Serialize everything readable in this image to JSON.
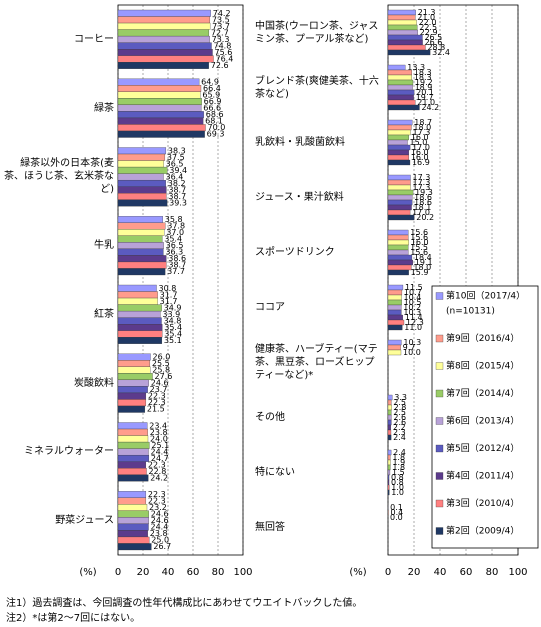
{
  "chart_data": [
    {
      "type": "bar",
      "orientation": "horizontal",
      "x_label": "(%)",
      "categories": [
        "コーヒー",
        "緑茶",
        "緑茶以外の日本茶(麦茶、ほうじ茶、玄米茶など)",
        "牛乳",
        "紅茶",
        "炭酸飲料",
        "ミネラルウォーター",
        "野菜ジュース"
      ],
      "xlim": [
        0,
        100
      ],
      "xticks": [
        0,
        20,
        40,
        60,
        80,
        100
      ],
      "grid": true,
      "series": [
        {
          "color": "#9999ff",
          "values": [
            74.2,
            64.9,
            38.3,
            35.8,
            30.8,
            26.0,
            23.4,
            22.3
          ],
          "value_labels": [
            "74.2",
            "64.9",
            "38.3",
            "35.8",
            "30.8",
            "26.0",
            "23.4",
            "22.3"
          ]
        },
        {
          "color": "#ff9c8c",
          "values": [
            73.5,
            66.4,
            37.5,
            37.8,
            31.7,
            25.5,
            23.8,
            22.3
          ],
          "value_labels": [
            "73.5",
            "66.4",
            "37.5",
            "37.8",
            "31.7",
            "25.5",
            "23.8",
            "22.3"
          ]
        },
        {
          "color": "#ffff99",
          "values": [
            73.7,
            65.9,
            36.5,
            37.0,
            31.7,
            25.8,
            24.0,
            23.2
          ],
          "value_labels": [
            "73.7",
            "65.9",
            "36.5",
            "37.0",
            "31.7",
            "25.8",
            "24.0",
            "23.2"
          ]
        },
        {
          "color": "#99cc66",
          "values": [
            72.7,
            66.9,
            39.4,
            35.4,
            34.9,
            27.6,
            25.1,
            24.6
          ],
          "value_labels": [
            "72.7",
            "66.9",
            "39.4",
            "35.4",
            "34.9",
            "27.6",
            "25.1",
            "24.6"
          ]
        },
        {
          "color": "#b8a2d8",
          "values": [
            73.3,
            66.6,
            36.4,
            36.5,
            33.9,
            24.6,
            24.4,
            24.6
          ],
          "value_labels": [
            "73.3",
            "66.6",
            "36.4",
            "36.5",
            "33.9",
            "24.6",
            "24.4",
            "24.6"
          ]
        },
        {
          "color": "#5b5bc0",
          "values": [
            74.8,
            68.6,
            38.2,
            36.3,
            34.8,
            23.7,
            24.7,
            24.4
          ],
          "value_labels": [
            "74.8",
            "68.6",
            "38.2",
            "36.3",
            "34.8",
            "23.7",
            "24.7",
            "24.4"
          ]
        },
        {
          "color": "#5c3b8c",
          "values": [
            75.6,
            68.1,
            38.7,
            38.6,
            35.4,
            22.3,
            22.3,
            23.8
          ],
          "value_labels": [
            "75.6",
            "68.1",
            "38.7",
            "38.6",
            "35.4",
            "22.3",
            "22.3",
            "23.8"
          ]
        },
        {
          "color": "#ff8080",
          "values": [
            76.4,
            70.0,
            38.7,
            38.7,
            35.4,
            22.3,
            22.8,
            25.0
          ],
          "value_labels": [
            "76.4",
            "70.0",
            "38.7",
            "38.7",
            "35.4",
            "22.3",
            "22.8",
            "25.0"
          ]
        },
        {
          "color": "#1f3864",
          "values": [
            72.6,
            69.3,
            39.3,
            37.7,
            35.1,
            21.5,
            24.2,
            26.7
          ],
          "value_labels": [
            "72.6",
            "69.3",
            "39.3",
            "37.7",
            "35.1",
            "21.5",
            "24.2",
            "26.7"
          ]
        }
      ]
    },
    {
      "type": "bar",
      "orientation": "horizontal",
      "x_label": "(%)",
      "categories": [
        "中国茶(ウーロン茶、ジャスミン茶、プーアル茶など)",
        "ブレンド茶(爽健美茶、十六茶など)",
        "乳飲料・乳酸菌飲料",
        "ジュース・果汁飲料",
        "スポーツドリンク",
        "ココア",
        "健康茶、ハーブティー(マテ茶、黒豆茶、ローズヒップティーなど)*",
        "その他",
        "特にない",
        "無回答"
      ],
      "xlim": [
        0,
        100
      ],
      "xticks": [
        0,
        20,
        40,
        60,
        80,
        100
      ],
      "grid": true,
      "legend_note": "(n=10131)",
      "series": [
        {
          "name": "第10回（2017/4）",
          "color": "#9999ff",
          "values": [
            21.3,
            13.3,
            18.7,
            17.3,
            15.6,
            11.5,
            10.3,
            3.3,
            2.4,
            0.1
          ],
          "value_labels": [
            "21.3",
            "13.3",
            "18.7",
            "17.3",
            "15.6",
            "11.5",
            "10.3",
            "3.3",
            "2.4",
            "0.1"
          ]
        },
        {
          "name": "第9回（2016/4）",
          "color": "#ff9c8c",
          "values": [
            21.0,
            18.3,
            18.0,
            17.3,
            15.6,
            10.7,
            9.7,
            2.5,
            1.8,
            0.4
          ],
          "value_labels": [
            "21.0",
            "18.3",
            "18.0",
            "17.3",
            "15.6",
            "10.7",
            "9.7",
            "2.5",
            "1.8",
            "0.4"
          ]
        },
        {
          "name": "第8回（2015/4）",
          "color": "#ffff99",
          "values": [
            22.0,
            18.3,
            17.3,
            17.3,
            16.0,
            10.4,
            10.0,
            2.8,
            1.9,
            0.0
          ],
          "value_labels": [
            "22.0",
            "18.3",
            "17.3",
            "17.3",
            "16.0",
            "10.4",
            "10.0",
            "2.8",
            "1.9",
            "0.0"
          ]
        },
        {
          "name": "第7回（2014/4）",
          "color": "#99cc66",
          "values": [
            22.5,
            19.2,
            16.0,
            19.3,
            15.5,
            10.5,
            null,
            2.5,
            1.8,
            null
          ],
          "value_labels": [
            "22.5",
            "19.2",
            "16.0",
            "19.3",
            "15.5",
            "10.5",
            null,
            "2.5",
            "1.8",
            null
          ]
        },
        {
          "name": "第6回（2013/4）",
          "color": "#b8a2d8",
          "values": [
            22.9,
            18.9,
            15.0,
            18.6,
            15.6,
            10.2,
            null,
            2.6,
            1.5,
            null
          ],
          "value_labels": [
            "22.9",
            "18.9",
            "15.0",
            "18.6",
            "15.6",
            "10.2",
            null,
            "2.6",
            "1.5",
            null
          ]
        },
        {
          "name": "第5回（2012/4）",
          "color": "#5b5bc0",
          "values": [
            26.5,
            20.1,
            17.0,
            18.6,
            18.4,
            10.3,
            null,
            2.6,
            0.8,
            null
          ],
          "value_labels": [
            "26.5",
            "20.1",
            "17.0",
            "18.6",
            "18.4",
            "10.3",
            null,
            "2.6",
            "0.8",
            null
          ]
        },
        {
          "name": "第4回（2011/4）",
          "color": "#5c3b8c",
          "values": [
            26.6,
            19.7,
            16.0,
            18.1,
            19.1,
            11.4,
            null,
            2.2,
            0.8,
            null
          ],
          "value_labels": [
            "26.6",
            "19.7",
            "16.0",
            "18.1",
            "19.1",
            "11.4",
            null,
            "2.2",
            "0.8",
            null
          ]
        },
        {
          "name": "第3回（2010/4）",
          "color": "#ff8080",
          "values": [
            28.8,
            21.0,
            16.0,
            17.0,
            18.0,
            12.3,
            null,
            2.3,
            1.0,
            null
          ],
          "value_labels": [
            "28.8",
            "21.0",
            "16.0",
            "17.0",
            "18.0",
            "12.3",
            null,
            "2.3",
            "1.0",
            null
          ]
        },
        {
          "name": "第2回（2009/4）",
          "color": "#1f3864",
          "values": [
            32.4,
            24.2,
            16.9,
            20.2,
            15.9,
            11.0,
            null,
            2.4,
            1.0,
            null
          ],
          "value_labels": [
            "32.4",
            "24.2",
            "16.9",
            "20.2",
            "15.9",
            "11.0",
            null,
            "2.4",
            "1.0",
            null
          ]
        }
      ]
    }
  ],
  "notes": [
    "注1）過去調査は、今回調査の性年代構成比にあわせてウエイトバックした値。",
    "注2）*は第2～7回にはない。"
  ]
}
